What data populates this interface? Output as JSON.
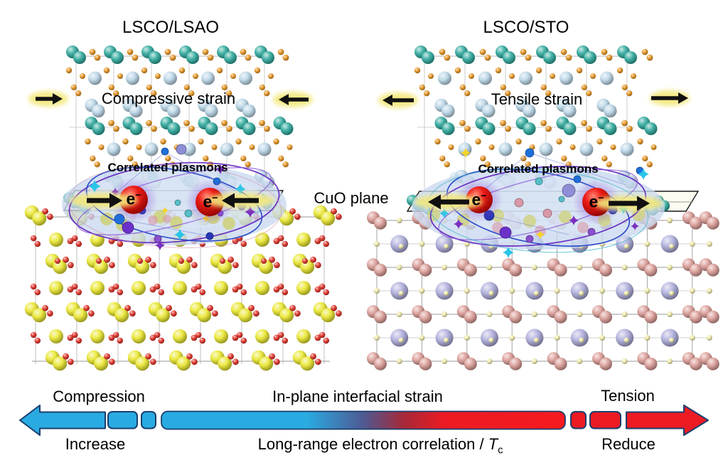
{
  "figure": {
    "background": "#ffffff",
    "panels": {
      "left": {
        "title": "LSCO/LSAO",
        "strain_label": "Compressive strain",
        "plasmon_label": "Correlated plasmons",
        "electron": "e",
        "electron_charge": "−",
        "strain_direction": "inward"
      },
      "right": {
        "title": "LSCO/STO",
        "strain_label": "Tensile strain",
        "plasmon_label": "Correlated plasmons",
        "electron": "e",
        "electron_charge": "−",
        "strain_direction": "outward"
      }
    },
    "interface_label": "CuO plane",
    "strain_axis": {
      "left_label_top": "Compression",
      "left_label_bottom": "Increase",
      "center_label_top": "In-plane interfacial strain",
      "center_label_bottom_text": "Long-range electron correlation / ",
      "center_label_bottom_symbol": "T",
      "center_label_bottom_subscript": "c",
      "right_label_top": "Tension",
      "right_label_bottom": "Reduce",
      "compression_color": "#29ABE2",
      "tension_color": "#EC1B23",
      "outline_color": "#1B3F6E"
    },
    "atom_colors": {
      "copper_teal": "#2AA79B",
      "lanthanum_strontium_blue": "#B9D5E6",
      "oxygen_orange": "#E59119",
      "lsao_yellow": "#E9E62B",
      "lsao_oxygen_red": "#DE2A20",
      "sto_strontium_lavender": "#ACABDB",
      "sto_titanium_pink": "#D99A94",
      "sto_oxygen_paleyellow": "#EDE8A6",
      "electron_red": "#EE1C17",
      "plasmon_cloud": "#C9D9EF",
      "orbit_purple": "#6A2FC0",
      "orbit_blue": "#2B49C9",
      "arrow_black": "#111111",
      "arrow_glow_yellow": "#F3E87C"
    },
    "decoration": {
      "spark_cyan": "#29C4E8",
      "spark_purple": "#7B2FBF",
      "spark_yellow": "#F5D327",
      "dot_blue": "#1E6FD9",
      "dot_navy": "#2738B5",
      "dot_purple": "#6A30C9",
      "dot_lavender": "#8E8ED6",
      "dot_pink": "#D898A8",
      "dot_teal": "#57BFC9",
      "dot_violet": "#8A4FD0",
      "ghost_olive": "#CDD06E"
    }
  }
}
